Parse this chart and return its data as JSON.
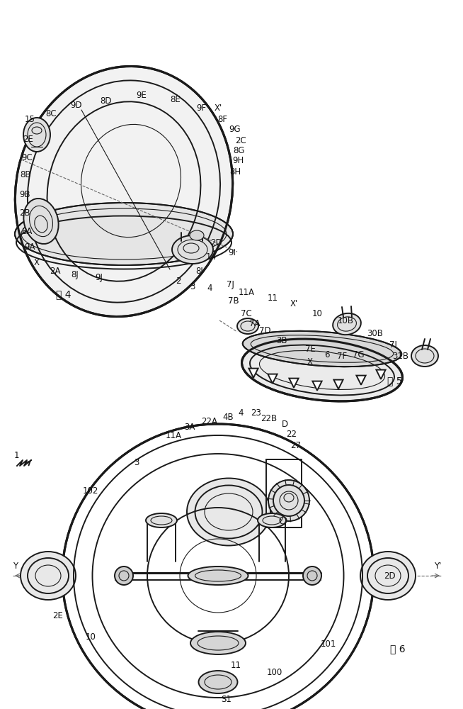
{
  "bg_color": "#ffffff",
  "line_color": "#1a1a1a",
  "label_color": "#111111",
  "fig_width": 6.54,
  "fig_height": 10.0,
  "dpi": 100,
  "fig4_label": "图 4",
  "fig5_label": "图 5",
  "fig6_label": "图 6"
}
